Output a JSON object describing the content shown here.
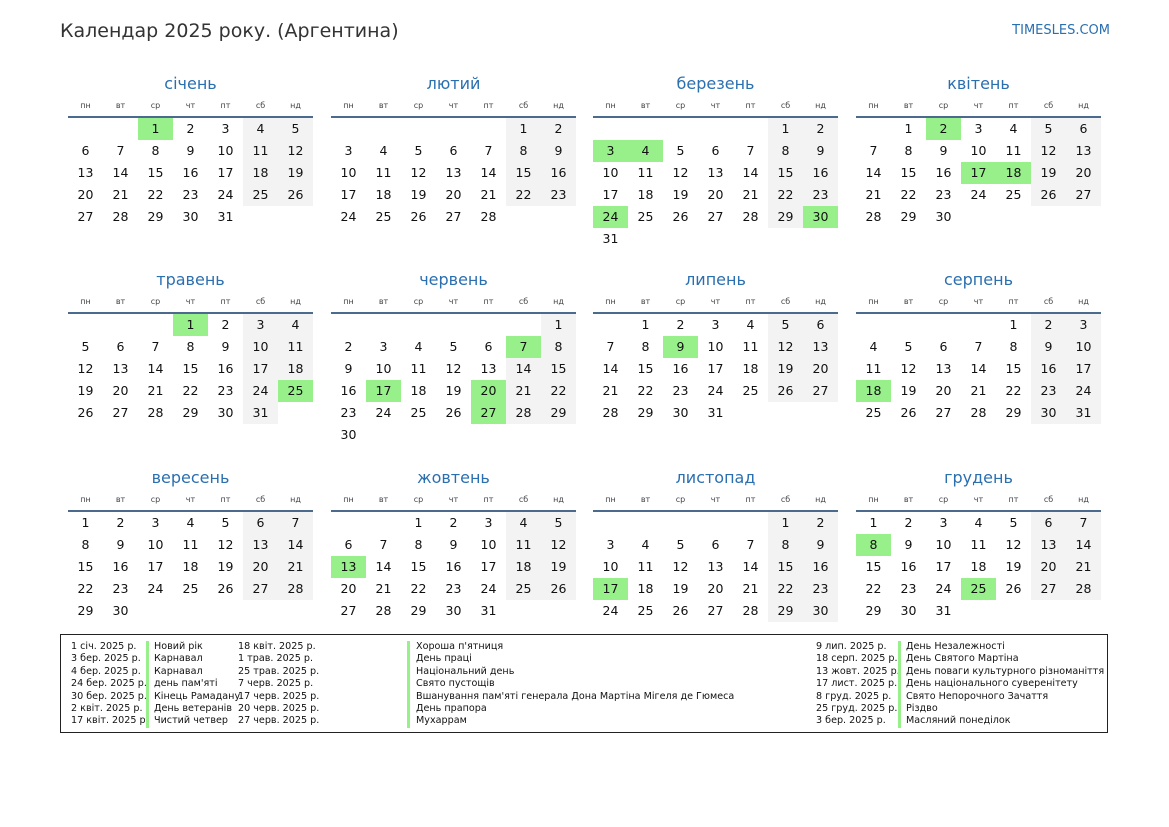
{
  "header": {
    "title": "Календар 2025 року. (Аргентина)",
    "site": "TIMESLES.COM"
  },
  "weekdays": [
    "пн",
    "вт",
    "ср",
    "чт",
    "пт",
    "сб",
    "нд"
  ],
  "colors": {
    "accent": "#2a6fb0",
    "holiday": "#98f08a",
    "weekend": "#f3f3f3"
  },
  "months": [
    {
      "name": "січень",
      "offset": 2,
      "days": 31,
      "holidays": [
        1
      ]
    },
    {
      "name": "лютий",
      "offset": 5,
      "days": 28,
      "holidays": []
    },
    {
      "name": "березень",
      "offset": 5,
      "days": 31,
      "holidays": [
        3,
        4,
        24,
        30
      ]
    },
    {
      "name": "квітень",
      "offset": 1,
      "days": 30,
      "holidays": [
        2,
        17,
        18
      ]
    },
    {
      "name": "травень",
      "offset": 3,
      "days": 31,
      "holidays": [
        1,
        25
      ]
    },
    {
      "name": "червень",
      "offset": 6,
      "days": 30,
      "holidays": [
        7,
        17,
        20,
        27
      ]
    },
    {
      "name": "липень",
      "offset": 1,
      "days": 31,
      "holidays": [
        9
      ]
    },
    {
      "name": "серпень",
      "offset": 4,
      "days": 31,
      "holidays": [
        18
      ]
    },
    {
      "name": "вересень",
      "offset": 0,
      "days": 30,
      "holidays": []
    },
    {
      "name": "жовтень",
      "offset": 2,
      "days": 31,
      "holidays": [
        13
      ]
    },
    {
      "name": "листопад",
      "offset": 5,
      "days": 30,
      "holidays": [
        17
      ]
    },
    {
      "name": "грудень",
      "offset": 0,
      "days": 31,
      "holidays": [
        8,
        25
      ]
    }
  ],
  "legend": {
    "col1_dates": [
      "1 січ. 2025 р.",
      "3 бер. 2025 р.",
      "4 бер. 2025 р.",
      "24 бер. 2025 р.",
      "30 бер. 2025 р.",
      "2 квіт. 2025 р.",
      "17 квіт. 2025 р."
    ],
    "col1_names": [
      "Новий рік",
      "Карнавал",
      "Карнавал",
      "день пам'яті",
      "Кінець Рамадану",
      "День ветеранів",
      "Чистий четвер"
    ],
    "col2_dates": [
      "18 квіт. 2025 р.",
      "1 трав. 2025 р.",
      "25 трав. 2025 р.",
      "7 черв. 2025 р.",
      "17 черв. 2025 р.",
      "20 черв. 2025 р.",
      "27 черв. 2025 р."
    ],
    "col2_names": [
      "Хороша п'ятниця",
      "День праці",
      "Національний день",
      "Свято пустощів",
      "Вшанування пам'яті генерала Дона Мартіна Мігеля де Гюмеса",
      "День прапора",
      "Мухаррам"
    ],
    "col3_dates": [
      "9 лип. 2025 р.",
      "18 серп. 2025 р.",
      "13 жовт. 2025 р.",
      "17 лист. 2025 р.",
      "8 груд. 2025 р.",
      "25 груд. 2025 р.",
      "3 бер. 2025 р."
    ],
    "col3_names": [
      "День Незалежності",
      "День Святого Мартіна",
      "День поваги культурного різноманіття",
      "День національного суверенітету",
      "Свято Непорочного Зачаття",
      "Різдво",
      "Масляний понеділок"
    ]
  }
}
